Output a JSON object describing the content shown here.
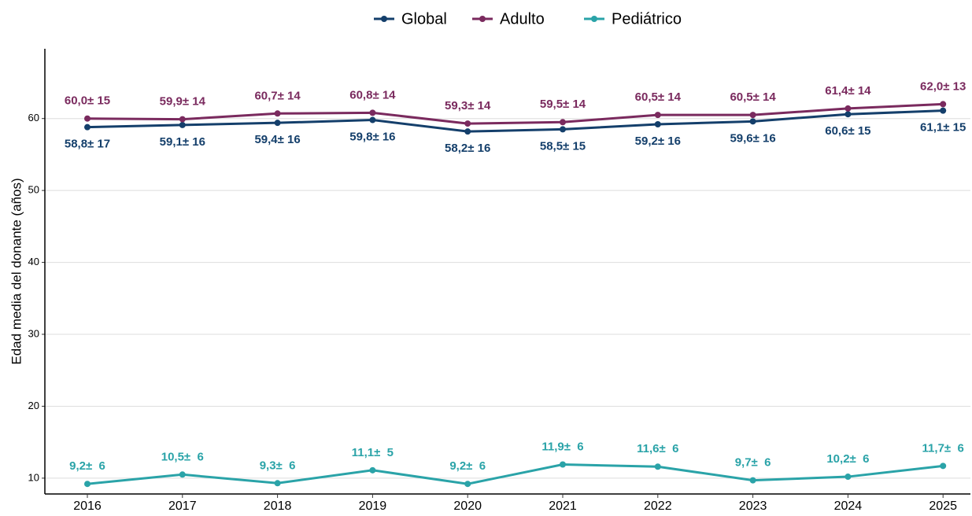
{
  "chart_data": {
    "type": "line",
    "ylabel": "Edad media del donante (años)",
    "categories": [
      "2016",
      "2017",
      "2018",
      "2019",
      "2020",
      "2021",
      "2022",
      "2023",
      "2024",
      "2025"
    ],
    "series": [
      {
        "name": "Global",
        "color": "#143f6b",
        "values": [
          58.8,
          59.1,
          59.4,
          59.8,
          58.2,
          58.5,
          59.2,
          59.6,
          60.6,
          61.1
        ],
        "value_labels": [
          "58,8± 17",
          "59,1± 16",
          "59,4± 16",
          "59,8± 16",
          "58,2± 16",
          "58,5± 15",
          "59,2± 16",
          "59,6± 16",
          "60,6± 15",
          "61,1± 15"
        ]
      },
      {
        "name": "Adulto",
        "color": "#7a2a5e",
        "values": [
          60.0,
          59.9,
          60.7,
          60.8,
          59.3,
          59.5,
          60.5,
          60.5,
          61.4,
          62.0
        ],
        "value_labels": [
          "60,0± 15",
          "59,9± 14",
          "60,7± 14",
          "60,8± 14",
          "59,3± 14",
          "59,5± 14",
          "60,5± 14",
          "60,5± 14",
          "61,4± 14",
          "62,0± 13"
        ]
      },
      {
        "name": "Pediátrico",
        "color": "#2aa3a8",
        "values": [
          9.2,
          10.5,
          9.3,
          11.1,
          9.2,
          11.9,
          11.6,
          9.7,
          10.2,
          11.7
        ],
        "value_labels": [
          "9,2±  6",
          "10,5±  6",
          "9,3±  6",
          "11,1±  5",
          "9,2±  6",
          "11,9±  6",
          "11,6±  6",
          "9,7±  6",
          "10,2±  6",
          "11,7±  6"
        ]
      }
    ],
    "ylim": [
      7.8,
      69.7
    ],
    "yticks": [
      10,
      20,
      30,
      40,
      50,
      60
    ],
    "grid": true,
    "legend": "top"
  }
}
